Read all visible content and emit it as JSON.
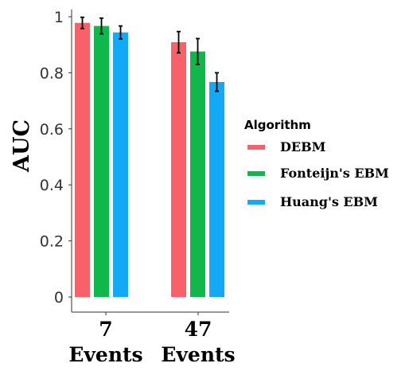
{
  "chart_data": {
    "type": "bar",
    "ylabel": "AUC",
    "ylim": [
      0,
      1
    ],
    "yticks": [
      "0",
      "0.2",
      "0.4",
      "0.6",
      "0.8",
      "1"
    ],
    "categories": [
      {
        "line1": "7",
        "line2": "Events"
      },
      {
        "line1": "47",
        "line2": "Events"
      }
    ],
    "legend": {
      "title": "Algorithm",
      "placement": "right"
    },
    "series": [
      {
        "name": "DEBM",
        "color": "#f8606a",
        "values": [
          0.978,
          0.909
        ],
        "errors": [
          0.02,
          0.038
        ]
      },
      {
        "name": "Fonteijn's EBM",
        "color": "#10b84c",
        "values": [
          0.967,
          0.876
        ],
        "errors": [
          0.028,
          0.046
        ]
      },
      {
        "name": "Huang's EBM",
        "color": "#12aaf7",
        "values": [
          0.944,
          0.767
        ],
        "errors": [
          0.023,
          0.033
        ]
      }
    ]
  }
}
